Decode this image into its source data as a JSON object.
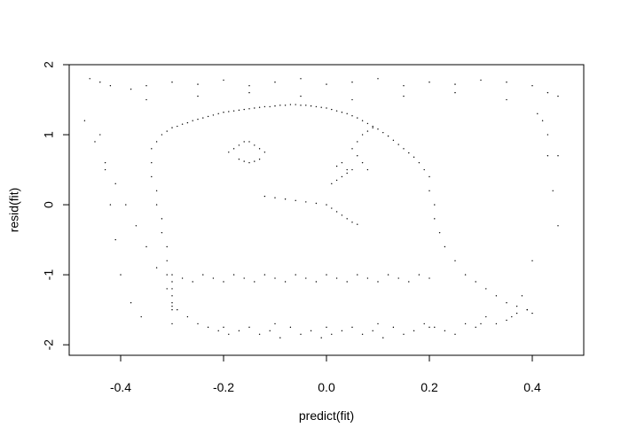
{
  "chart_data": {
    "type": "scatter",
    "title": "",
    "xlabel": "predict(fit)",
    "ylabel": "resid(fit)",
    "xlim": [
      -0.5,
      0.5
    ],
    "ylim": [
      -2.15,
      2.0
    ],
    "xticks": [
      -0.4,
      -0.2,
      0.0,
      0.2,
      0.4
    ],
    "xtick_labels": [
      "-0.4",
      "-0.2",
      "0.0",
      "0.2",
      "0.4"
    ],
    "yticks": [
      -2,
      -1,
      0,
      1,
      2
    ],
    "ytick_labels": [
      "-2",
      "-1",
      "0",
      "1",
      "2"
    ],
    "grid": false,
    "legend": "none",
    "point_color": "#000000",
    "series": [
      {
        "points_note": "",
        "x": [
          -0.46,
          -0.44,
          -0.42,
          -0.38,
          -0.35,
          -0.3,
          -0.25,
          -0.2,
          -0.15,
          -0.1,
          -0.05,
          0.0,
          0.05,
          0.1,
          0.15,
          0.2,
          0.25,
          0.3,
          0.35,
          0.4,
          0.43,
          0.45,
          -0.47,
          -0.45,
          -0.43,
          -0.41,
          -0.39,
          -0.37,
          -0.35,
          -0.33,
          -0.31,
          -0.29,
          -0.27,
          -0.25,
          -0.23,
          -0.21,
          -0.19,
          -0.17,
          -0.15,
          -0.13,
          -0.11,
          -0.09,
          -0.07,
          -0.05,
          -0.03,
          -0.01,
          0.01,
          0.03,
          0.05,
          0.07,
          0.09,
          0.11,
          0.13,
          0.15,
          0.17,
          0.19,
          0.21,
          0.23,
          0.25,
          0.27,
          0.29,
          0.31,
          0.33,
          0.35,
          0.37,
          0.39,
          0.41,
          0.43,
          0.45,
          -0.34,
          -0.33,
          -0.32,
          -0.31,
          -0.3,
          -0.29,
          -0.28,
          -0.27,
          -0.26,
          -0.25,
          -0.24,
          -0.23,
          -0.22,
          -0.21,
          -0.2,
          -0.19,
          -0.18,
          -0.17,
          -0.16,
          -0.15,
          -0.14,
          -0.13,
          -0.12,
          -0.11,
          -0.1,
          -0.09,
          -0.08,
          -0.07,
          -0.06,
          -0.05,
          -0.04,
          -0.03,
          -0.02,
          -0.01,
          0.0,
          0.01,
          0.02,
          0.03,
          0.04,
          0.05,
          0.06,
          0.07,
          0.08,
          0.09,
          0.1,
          0.11,
          0.12,
          0.13,
          0.14,
          0.15,
          0.16,
          0.17,
          0.18,
          0.19,
          0.2,
          -0.34,
          -0.34,
          -0.33,
          -0.33,
          -0.32,
          -0.32,
          -0.31,
          -0.31,
          -0.31,
          -0.3,
          -0.3,
          -0.3,
          -0.3,
          -0.3,
          -0.3,
          0.2,
          0.21,
          0.21,
          0.22,
          0.23,
          0.25,
          0.27,
          0.29,
          0.31,
          0.33,
          0.35,
          0.37,
          0.39,
          0.4,
          -0.19,
          -0.18,
          -0.17,
          -0.16,
          -0.15,
          -0.14,
          -0.13,
          -0.12,
          -0.17,
          -0.16,
          -0.15,
          -0.14,
          -0.13,
          -0.12,
          -0.1,
          -0.08,
          -0.06,
          -0.04,
          -0.02,
          0.0,
          0.01,
          0.02,
          0.03,
          0.04,
          0.05,
          0.06,
          0.01,
          0.02,
          0.03,
          0.04,
          0.05,
          0.02,
          0.03,
          0.04,
          0.05,
          0.06,
          0.07,
          0.08,
          0.09,
          0.06,
          0.07,
          0.08,
          -0.3,
          -0.28,
          -0.26,
          -0.24,
          -0.22,
          -0.2,
          -0.18,
          -0.16,
          -0.14,
          -0.12,
          -0.1,
          -0.08,
          -0.06,
          -0.04,
          -0.02,
          0.0,
          0.02,
          0.04,
          0.06,
          0.08,
          0.1,
          0.12,
          0.14,
          0.16,
          0.18,
          0.2,
          -0.44,
          -0.43,
          -0.42,
          -0.41,
          -0.4,
          -0.38,
          -0.36,
          0.42,
          0.43,
          0.44,
          0.45,
          0.4,
          0.38,
          0.36,
          -0.35,
          -0.25,
          -0.15,
          -0.05,
          0.05,
          0.15,
          0.25,
          0.35,
          -0.3,
          -0.2,
          -0.1,
          0.0,
          0.1,
          0.2,
          0.3
        ],
        "y": [
          1.8,
          1.75,
          1.7,
          1.65,
          1.7,
          1.75,
          1.72,
          1.78,
          1.7,
          1.75,
          1.8,
          1.72,
          1.75,
          1.8,
          1.7,
          1.75,
          1.72,
          1.78,
          1.75,
          1.7,
          1.6,
          1.55,
          1.2,
          0.9,
          0.6,
          0.3,
          0.0,
          -0.3,
          -0.6,
          -0.9,
          -1.2,
          -1.5,
          -1.6,
          -1.7,
          -1.75,
          -1.8,
          -1.85,
          -1.8,
          -1.75,
          -1.85,
          -1.8,
          -1.9,
          -1.75,
          -1.85,
          -1.8,
          -1.9,
          -1.85,
          -1.8,
          -1.75,
          -1.85,
          -1.8,
          -1.9,
          -1.75,
          -1.85,
          -1.8,
          -1.7,
          -1.75,
          -1.8,
          -1.85,
          -1.7,
          -1.75,
          -1.6,
          -1.7,
          -1.65,
          -1.55,
          -1.5,
          1.3,
          1.0,
          0.7,
          0.8,
          0.9,
          1.0,
          1.05,
          1.1,
          1.12,
          1.15,
          1.17,
          1.2,
          1.22,
          1.24,
          1.26,
          1.28,
          1.3,
          1.32,
          1.33,
          1.34,
          1.35,
          1.36,
          1.37,
          1.38,
          1.39,
          1.4,
          1.4,
          1.41,
          1.42,
          1.42,
          1.43,
          1.43,
          1.42,
          1.42,
          1.41,
          1.4,
          1.39,
          1.38,
          1.36,
          1.34,
          1.32,
          1.3,
          1.27,
          1.24,
          1.2,
          1.16,
          1.12,
          1.08,
          1.03,
          0.98,
          0.92,
          0.86,
          0.8,
          0.74,
          0.68,
          0.6,
          0.5,
          0.4,
          0.6,
          0.4,
          0.2,
          0.0,
          -0.2,
          -0.4,
          -0.6,
          -0.8,
          -1.0,
          -1.1,
          -1.2,
          -1.3,
          -1.4,
          -1.45,
          -1.5,
          0.2,
          0.0,
          -0.2,
          -0.4,
          -0.6,
          -0.8,
          -1.0,
          -1.1,
          -1.2,
          -1.3,
          -1.4,
          -1.45,
          -1.5,
          -1.55,
          0.75,
          0.8,
          0.85,
          0.9,
          0.9,
          0.85,
          0.8,
          0.75,
          0.65,
          0.62,
          0.6,
          0.62,
          0.65,
          0.12,
          0.1,
          0.08,
          0.06,
          0.04,
          0.02,
          0.0,
          -0.05,
          -0.1,
          -0.15,
          -0.2,
          -0.25,
          -0.28,
          0.3,
          0.35,
          0.4,
          0.45,
          0.5,
          0.55,
          0.6,
          0.5,
          0.8,
          0.9,
          1.0,
          1.05,
          1.1,
          0.7,
          0.6,
          0.5,
          -1.0,
          -1.05,
          -1.1,
          -1.0,
          -1.05,
          -1.1,
          -1.0,
          -1.05,
          -1.1,
          -1.0,
          -1.05,
          -1.1,
          -1.0,
          -1.05,
          -1.1,
          -1.0,
          -1.05,
          -1.1,
          -1.0,
          -1.05,
          -1.1,
          -1.0,
          -1.05,
          -1.1,
          -1.0,
          -1.05,
          1.0,
          0.5,
          0.0,
          -0.5,
          -1.0,
          -1.4,
          -1.6,
          1.2,
          0.7,
          0.2,
          -0.3,
          -0.8,
          -1.3,
          -1.6,
          1.5,
          1.55,
          1.6,
          1.55,
          1.5,
          1.55,
          1.6,
          1.5,
          -1.7,
          -1.75,
          -1.7,
          -1.75,
          -1.7,
          -1.75,
          -1.7
        ]
      }
    ]
  }
}
